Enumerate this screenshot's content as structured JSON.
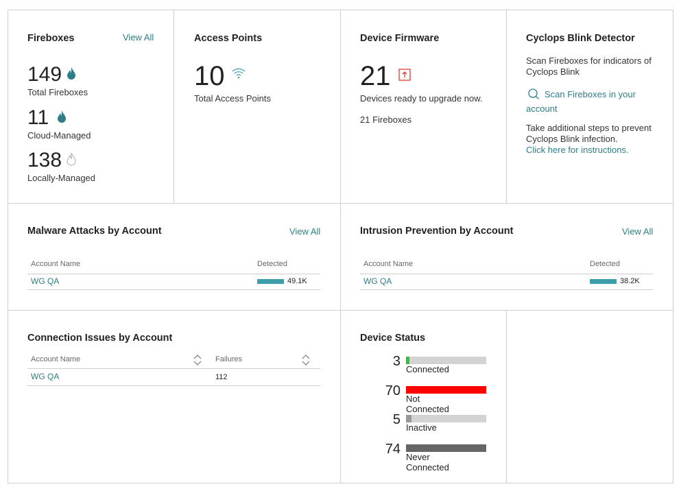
{
  "fireboxes": {
    "title": "Fireboxes",
    "view_all": "View All",
    "total": "149",
    "total_label": "Total Fireboxes",
    "cloud": "11",
    "cloud_label": "Cloud-Managed",
    "local": "138",
    "local_label": "Locally-Managed"
  },
  "access_points": {
    "title": "Access Points",
    "total": "10",
    "total_label": "Total Access Points"
  },
  "firmware": {
    "title": "Device Firmware",
    "count": "21",
    "ready_label": "Devices ready to upgrade now.",
    "fireboxes": "21 Fireboxes"
  },
  "cyclops": {
    "title": "Cyclops Blink Detector",
    "desc": "Scan Fireboxes for indicators of Cyclops Blink",
    "scan_link": "Scan Fireboxes in your account",
    "steps": "Take additional steps to prevent Cyclops Blink infection.",
    "instructions_link": "Click here for instructions."
  },
  "malware": {
    "title": "Malware Attacks by Account",
    "view_all": "View All",
    "col_account": "Account Name",
    "col_detected": "Detected",
    "rows": [
      {
        "account": "WG QA",
        "detected": "49.1K",
        "fill": 1
      }
    ]
  },
  "ips": {
    "title": "Intrusion Prevention by Account",
    "view_all": "View All",
    "col_account": "Account Name",
    "col_detected": "Detected",
    "rows": [
      {
        "account": "WG QA",
        "detected": "38.2K",
        "fill": 1
      }
    ]
  },
  "connection": {
    "title": "Connection Issues by Account",
    "col_account": "Account Name",
    "col_failures": "Failures",
    "rows": [
      {
        "account": "WG QA",
        "failures": "112"
      }
    ]
  },
  "device_status": {
    "title": "Device Status",
    "items": [
      {
        "count": "3",
        "label": "Connected",
        "fill": 0.04,
        "color": "#4caf50"
      },
      {
        "count": "70",
        "label": "Not Connected",
        "fill": 1,
        "color": "#ff0000"
      },
      {
        "count": "5",
        "label": "Inactive",
        "fill": 0.07,
        "color": "#999999"
      },
      {
        "count": "74",
        "label": "Never Connected",
        "fill": 1,
        "color": "#666666"
      }
    ]
  },
  "colors": {
    "accent": "#2e7d87",
    "bar": "#3c9eaa",
    "alert": "#e53935"
  }
}
